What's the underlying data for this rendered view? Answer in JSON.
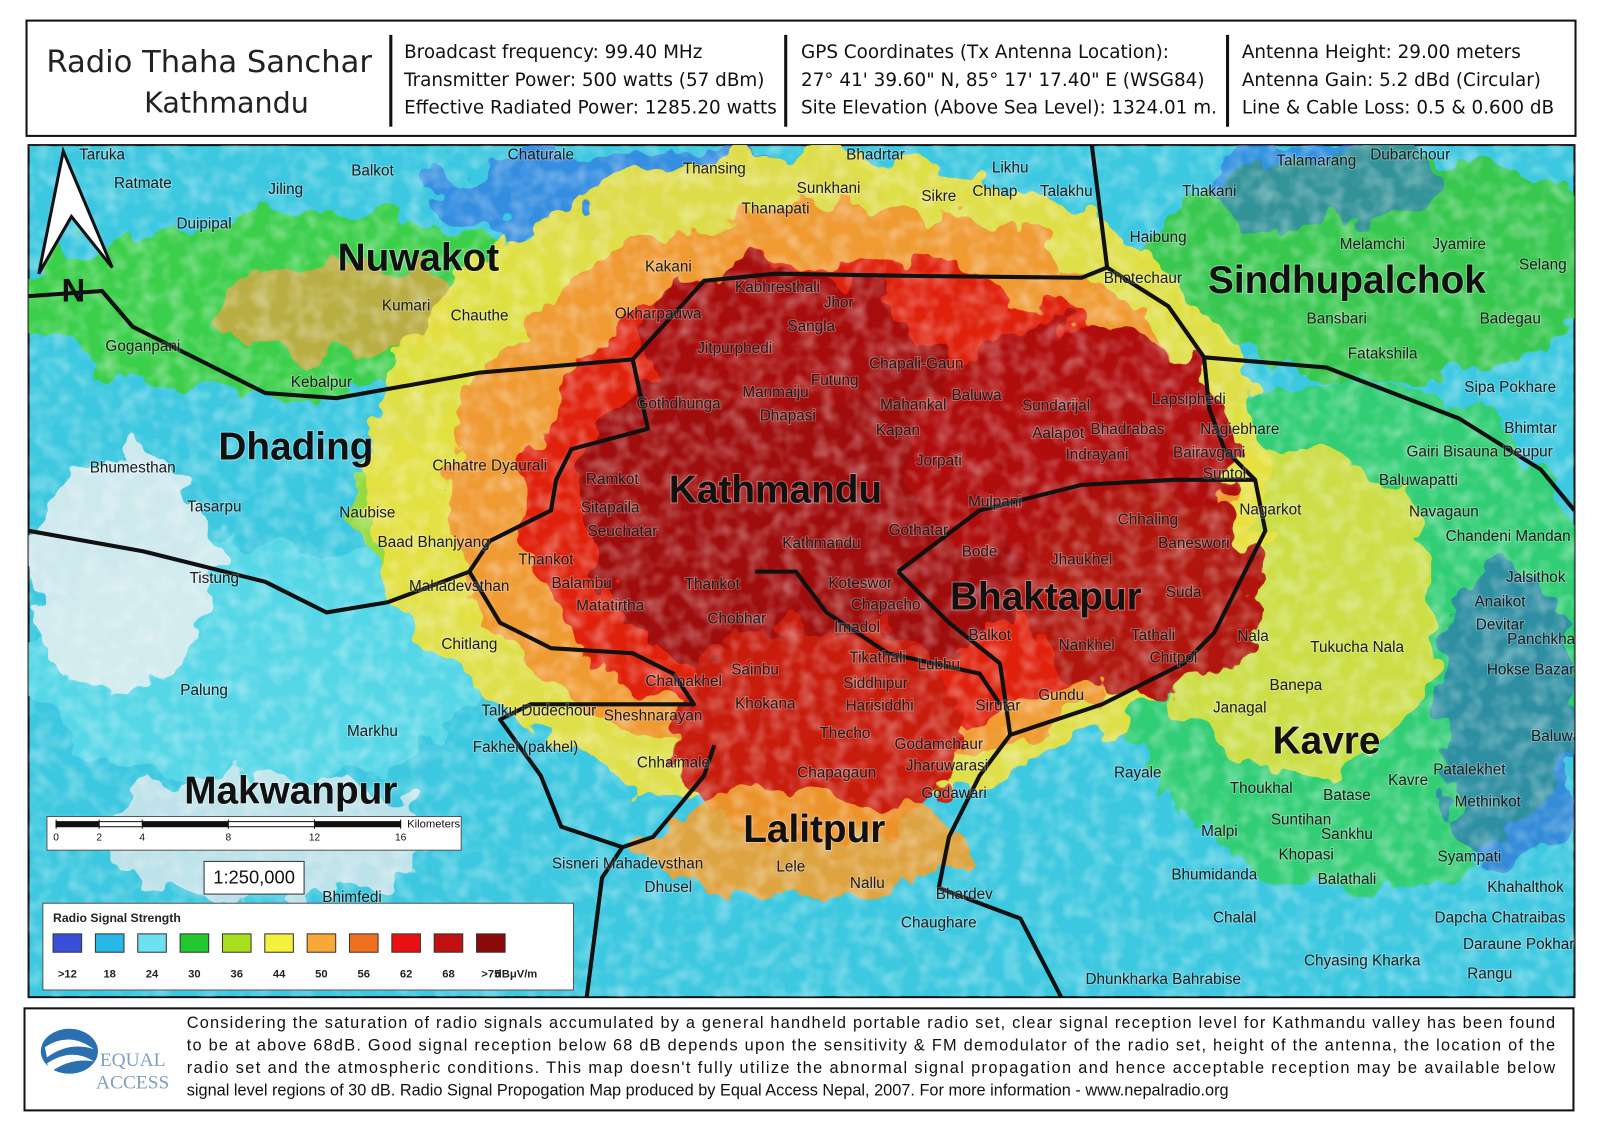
{
  "header": {
    "station": "Radio Thaha Sanchar",
    "city": "Kathmandu",
    "col1": [
      "Broadcast frequency: 99.40 MHz",
      "Transmitter Power: 500 watts (57 dBm)",
      "Effective Radiated Power: 1285.20 watts"
    ],
    "col2": [
      "GPS Coordinates (Tx Antenna Location):",
      "27° 41' 39.60\" N, 85° 17' 17.40\" E  (WSG84)",
      "Site Elevation (Above Sea Level): 1324.01 m."
    ],
    "col3": [
      "Antenna Height: 29.00 meters",
      "Antenna Gain: 5.2 dBd (Circular)",
      "Line & Cable Loss: 0.5 & 0.600 dB"
    ]
  },
  "map": {
    "north": "N",
    "districts": [
      "Nuwakot",
      "Sindhupalchok",
      "Dhading",
      "Kathmandu",
      "Bhaktapur",
      "Kavre",
      "Lalitpur",
      "Makwanpur"
    ],
    "places": [
      "Taruka",
      "Ratmate",
      "Jiling",
      "Balkot",
      "Duipipal",
      "Chaturale",
      "Thansing",
      "Bhadrtar",
      "Likhu",
      "Talamarang",
      "Dubarchour",
      "Sunkhani",
      "Sikre",
      "Chhap",
      "Talakhu",
      "Thakani",
      "Thanapati",
      "Haibung",
      "Melamchi",
      "Jyamire",
      "Selang",
      "Kakani",
      "Bhotechaur",
      "Kabhresthali",
      "Jhor",
      "Kumari",
      "Chauthe",
      "Okharpauwa",
      "Sangla",
      "Bansbari",
      "Badegau",
      "Goganpani",
      "Jitpurphedi",
      "Fatakshila",
      "Chapali-Gaun",
      "Kebalpur",
      "Futung",
      "Manmaiju",
      "Sipa Pokhare",
      "Baluwa",
      "Gothdhunga",
      "Mahankal",
      "Sundarijal",
      "Lapsiphedi",
      "Dhapasi",
      "Bhimtar",
      "Kapan",
      "Bhadrabas",
      "Nagiebhare",
      "Aalapot",
      "Indrayani",
      "Bairavgani",
      "Gairi Bisauna Deupur",
      "Bhumesthan",
      "Chhatre Dyaurali",
      "Jorpati",
      "Suntol",
      "Ramkot",
      "Baluwapatti",
      "Mulpani",
      "Tasarpu",
      "Naubise",
      "Sitapaila",
      "Nagarkot",
      "Navagaun",
      "Chhaling",
      "Seuchatar",
      "Gothatar",
      "Chandeni Mandan",
      "Baad Bhanjyang",
      "Kathmandu",
      "Baneswori",
      "Thankot",
      "Bode",
      "Jhaukhel",
      "Tistung",
      "Jalsithok",
      "Mahadevsthan",
      "Balambu",
      "Thankot",
      "Koteswor",
      "Suda",
      "Anaikot",
      "Matatirtha",
      "Chapacho",
      "Devitar",
      "Chobhar",
      "Imadol",
      "Balkot",
      "Nala",
      "Panchkhal",
      "Chitlang",
      "Nankhel",
      "Tathali",
      "Tukucha Nala",
      "Chitpol",
      "Tikathali",
      "Lubhu",
      "Sainbu",
      "Hokse Bazar",
      "Chainakhel",
      "Siddhipur",
      "Banepa",
      "Palung",
      "Gundu",
      "Khokana",
      "Harisiddhi",
      "Sirutar",
      "Janagal",
      "Talku Dudechour",
      "Sheshnarayan",
      "Markhu",
      "Thecho",
      "Baluwa",
      "Godamchaur",
      "Fakhel (pakhel)",
      "Chhaimale",
      "Jharuwarasi",
      "Patalekhet",
      "Rayale",
      "Chapagaun",
      "Kavre",
      "Thoukhal",
      "Batase",
      "Godawari",
      "Methinkot",
      "Suntihan",
      "Malpi",
      "Sankhu",
      "Khopasi",
      "Syampati",
      "Sisneri Mahadevsthan",
      "Lele",
      "Bhumidanda",
      "Balathali",
      "Nallu",
      "Dhusel",
      "Khahalthok",
      "Bhimfedi",
      "Bhardev",
      "Chaughare",
      "Chalal",
      "Dapcha Chatraibas",
      "Daraune Pokhari",
      "Chyasing Kharka",
      "Rangu",
      "Dhunkharka Bahrabise"
    ]
  },
  "scale_bar": {
    "ticks": [
      0,
      2,
      4,
      8,
      12,
      16
    ],
    "unit": "Kilometers",
    "ratio": "1:250,000"
  },
  "legend": {
    "title": "Radio Signal Strength",
    "unit": "dBμV/m",
    "items": [
      {
        "label": ">12",
        "color": "#3a4fd8"
      },
      {
        "label": "18",
        "color": "#27b8e8"
      },
      {
        "label": "24",
        "color": "#6ee0f0"
      },
      {
        "label": "30",
        "color": "#22c830"
      },
      {
        "label": "36",
        "color": "#a8e020"
      },
      {
        "label": "44",
        "color": "#f4f040"
      },
      {
        "label": "50",
        "color": "#f8a838"
      },
      {
        "label": "56",
        "color": "#f07020"
      },
      {
        "label": "62",
        "color": "#e81010"
      },
      {
        "label": "68",
        "color": "#c01010"
      },
      {
        "label": ">75",
        "color": "#8a0a0a"
      }
    ]
  },
  "footer": {
    "logo": [
      "EQUAL",
      "ACCESS"
    ],
    "lines": [
      "Considering the saturation of radio signals accumulated by a general handheld portable radio set, clear signal reception level for Kathmandu valley has been found",
      "to be at above 68dB. Good  signal reception below 68 dB depends upon the sensitivity & FM demodulator of the radio set, height of the antenna, the location of the",
      "radio set and the atmospheric conditions. This map doesn't fully utilize the abnormal signal propagation and hence acceptable reception may be available below",
      "signal level regions of 30 dB. Radio Signal Propogation Map produced by Equal Access Nepal, 2007. For more information - www.nepalradio.org"
    ]
  }
}
